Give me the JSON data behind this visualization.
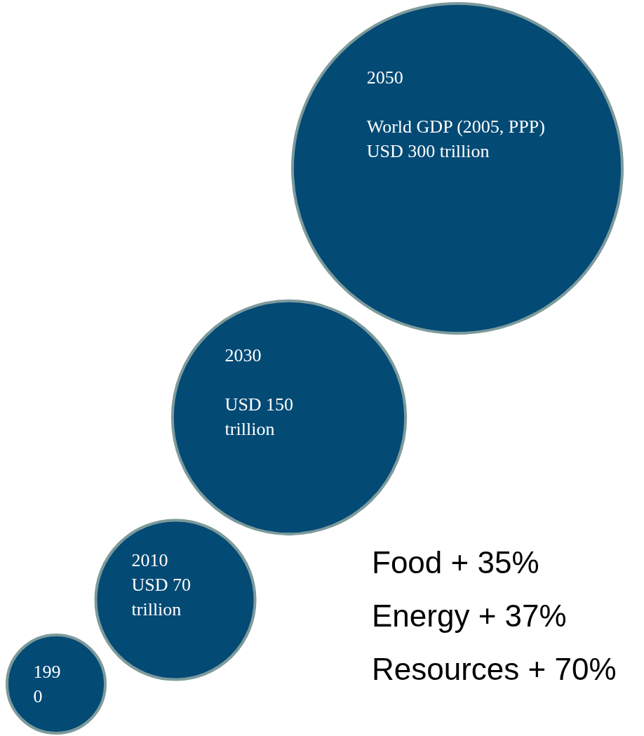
{
  "chart_data": {
    "type": "other",
    "categories": [
      "1990",
      "2010",
      "2030",
      "2050"
    ],
    "values": [
      null,
      70,
      150,
      300
    ],
    "color": "#034a75",
    "value_labels": [
      null,
      "USD 70 trillion",
      "USD 150 trillion",
      "World GDP (2005, PPP) USD 300 trillion"
    ],
    "annotations": [
      "Food + 35%",
      "Energy + 37%",
      "Resources + 70%"
    ]
  }
}
